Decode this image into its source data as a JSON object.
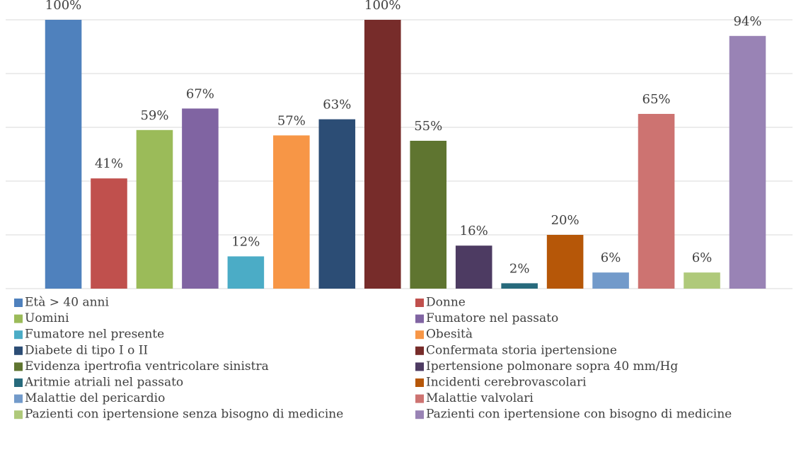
{
  "chart_data": {
    "type": "bar",
    "ylim": [
      0,
      100
    ],
    "yticks": [
      0,
      20,
      40,
      60,
      80,
      100
    ],
    "grid": true,
    "series": [
      {
        "name": "Età > 40 anni",
        "color": "#4f81bd",
        "values": [
          100
        ],
        "value_labels": [
          "100%"
        ]
      },
      {
        "name": "Donne",
        "color": "#c0504d",
        "values": [
          41
        ],
        "value_labels": [
          "41%"
        ]
      },
      {
        "name": "Uomini",
        "color": "#9bbb59",
        "values": [
          59
        ],
        "value_labels": [
          "59%"
        ]
      },
      {
        "name": "Fumatore nel passato",
        "color": "#8064a2",
        "values": [
          67
        ],
        "value_labels": [
          "67%"
        ]
      },
      {
        "name": "Fumatore nel presente",
        "color": "#4bacc6",
        "values": [
          12
        ],
        "value_labels": [
          "12%"
        ]
      },
      {
        "name": "Obesità",
        "color": "#f79646",
        "values": [
          57
        ],
        "value_labels": [
          "57%"
        ]
      },
      {
        "name": "Diabete di tipo I o II",
        "color": "#2c4d75",
        "values": [
          63
        ],
        "value_labels": [
          "63%"
        ]
      },
      {
        "name": "Confermata storia ipertensione",
        "color": "#772c2a",
        "values": [
          100
        ],
        "value_labels": [
          "100%"
        ]
      },
      {
        "name": "Evidenza ipertrofia ventricolare sinistra",
        "color": "#5f7530",
        "values": [
          55
        ],
        "value_labels": [
          "55%"
        ]
      },
      {
        "name": "Ipertensione polmonare sopra 40 mm/Hg",
        "color": "#4d3b62",
        "values": [
          16
        ],
        "value_labels": [
          "16%"
        ]
      },
      {
        "name": "Aritmie atriali nel passato",
        "color": "#276a7c",
        "values": [
          2
        ],
        "value_labels": [
          "2%"
        ]
      },
      {
        "name": "Incidenti cerebrovascolari",
        "color": "#b65708",
        "values": [
          20
        ],
        "value_labels": [
          "20%"
        ]
      },
      {
        "name": "Malattie del pericardio",
        "color": "#729aca",
        "values": [
          6
        ],
        "value_labels": [
          "6%"
        ]
      },
      {
        "name": "Malattie valvolari",
        "color": "#cd7371",
        "values": [
          65
        ],
        "value_labels": [
          "65%"
        ]
      },
      {
        "name": "Pazienti con ipertensione senza bisogno di medicine",
        "color": "#afc97a",
        "values": [
          6
        ],
        "value_labels": [
          "6%"
        ]
      },
      {
        "name": "Pazienti con ipertensione con bisogno di medicine",
        "color": "#9983b5",
        "values": [
          94
        ],
        "value_labels": [
          "94%"
        ]
      }
    ]
  }
}
